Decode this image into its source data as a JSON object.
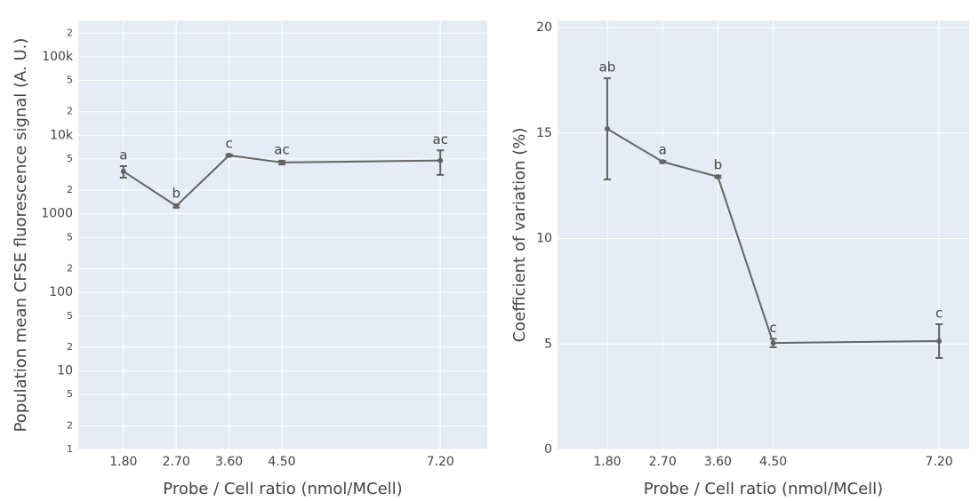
{
  "chart_data": [
    {
      "type": "line",
      "xlabel": "Probe / Cell ratio (nmol/MCell)",
      "ylabel": "Population mean CFSE fluorescence signal (A. U.)",
      "log_y": true,
      "grid": true,
      "color": "#636363",
      "xlim": [
        1.03,
        8.0
      ],
      "xticks": [
        {
          "value": 1.8,
          "label": "1.80"
        },
        {
          "value": 2.7,
          "label": "2.70"
        },
        {
          "value": 3.6,
          "label": "3.60"
        },
        {
          "value": 4.5,
          "label": "4.50"
        },
        {
          "value": 7.2,
          "label": "7.20"
        }
      ],
      "ylim": [
        1,
        290000
      ],
      "yticks": [
        1,
        2,
        5,
        10,
        {
          "value": 20,
          "label": "2"
        },
        {
          "value": 50,
          "label": "5"
        },
        100,
        {
          "value": 200,
          "label": "2"
        },
        {
          "value": 500,
          "label": "5"
        },
        1000,
        {
          "value": 2000,
          "label": "2"
        },
        {
          "value": 5000,
          "label": "5"
        },
        {
          "value": 10000,
          "label": "10k"
        },
        {
          "value": 20000,
          "label": "2"
        },
        {
          "value": 50000,
          "label": "5"
        },
        {
          "value": 100000,
          "label": "100k"
        },
        {
          "value": 200000,
          "label": "2"
        }
      ],
      "x": [
        1.8,
        2.7,
        3.6,
        4.5,
        7.2
      ],
      "values": [
        3470,
        1260,
        5550,
        4510,
        4780
      ],
      "errors": [
        580,
        60,
        150,
        250,
        1650
      ],
      "annotations": [
        "a",
        "b",
        "c",
        "ac",
        "ac"
      ]
    },
    {
      "type": "line",
      "xlabel": "Probe / Cell ratio (nmol/MCell)",
      "ylabel": "Coefficient of variation (%)",
      "log_y": false,
      "grid": true,
      "color": "#636363",
      "xlim": [
        0.99,
        7.69
      ],
      "xticks": [
        {
          "value": 1.8,
          "label": "1.80"
        },
        {
          "value": 2.7,
          "label": "2.70"
        },
        {
          "value": 3.6,
          "label": "3.60"
        },
        {
          "value": 4.5,
          "label": "4.50"
        },
        {
          "value": 7.2,
          "label": "7.20"
        }
      ],
      "ylim": [
        0,
        20.34
      ],
      "yticks": [
        0,
        5,
        10,
        15,
        20
      ],
      "x": [
        1.8,
        2.7,
        3.6,
        4.5,
        7.2
      ],
      "values": [
        15.2,
        13.64,
        12.93,
        5.05,
        5.14
      ],
      "errors": [
        2.4,
        0.05,
        0.05,
        0.2,
        0.8
      ],
      "annotations": [
        "ab",
        "a",
        "b",
        "c",
        "c"
      ]
    }
  ]
}
